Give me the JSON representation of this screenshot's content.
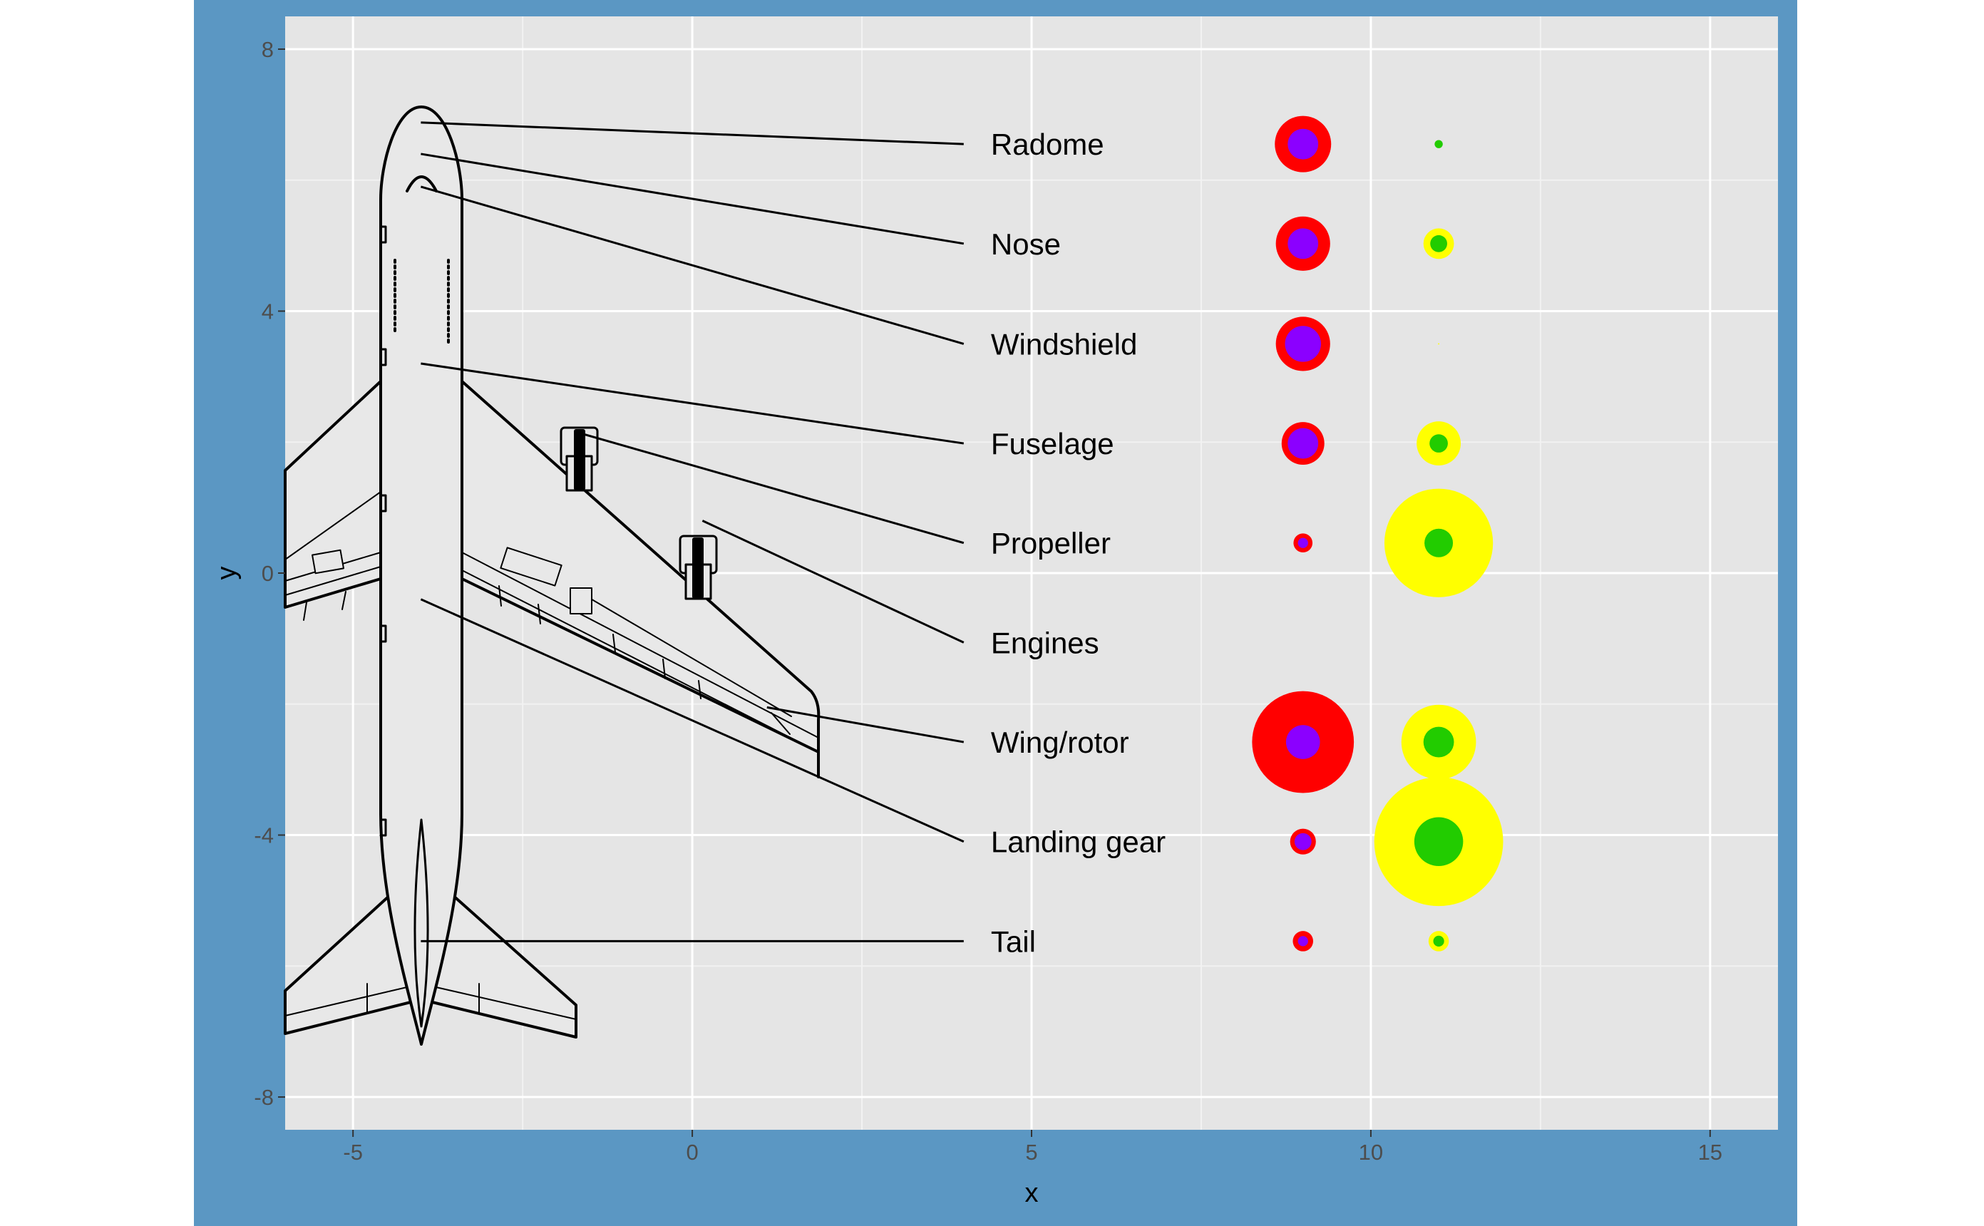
{
  "colors": {
    "page_bg": "#ffffff",
    "panel_outer_bg": "#5b97c3",
    "plot_bg": "#e5e5e5",
    "grid_major": "#ffffff",
    "grid_minor": "#f2f2f2",
    "axis_text": "#4d4d4d",
    "axis_title": "#000000",
    "label_text": "#000000",
    "outer_bubble_left": "#ff0000",
    "inner_bubble_left": "#8b00ff",
    "outer_bubble_right": "#ffff00",
    "inner_bubble_right": "#22cc00",
    "airplane_fill": "#e8e8e8",
    "airplane_stroke": "#000000"
  },
  "chart_data": {
    "type": "scatter",
    "title": "",
    "xlabel": "x",
    "ylabel": "y",
    "xlim": [
      -6.0,
      16.0
    ],
    "ylim": [
      -8.5,
      8.5
    ],
    "x_ticks": [
      -5,
      0,
      5,
      10,
      15
    ],
    "x_tick_labels": [
      "-5",
      "0",
      "5",
      "10",
      "15"
    ],
    "y_ticks": [
      -8,
      -4,
      0,
      4,
      8
    ],
    "y_tick_labels": [
      "-8",
      "-4",
      "0",
      "4",
      "8"
    ],
    "grid": true,
    "legend": "none",
    "labels": [
      {
        "text": "Radome",
        "y": 6.55
      },
      {
        "text": "Nose",
        "y": 5.03
      },
      {
        "text": "Windshield",
        "y": 3.5
      },
      {
        "text": "Fuselage",
        "y": 1.98
      },
      {
        "text": "Propeller",
        "y": 0.46
      },
      {
        "text": "Engines",
        "y": -1.06
      },
      {
        "text": "Wing/rotor",
        "y": -2.58
      },
      {
        "text": "Landing gear",
        "y": -4.1
      },
      {
        "text": "Tail",
        "y": -5.62
      }
    ],
    "label_x": 4.4,
    "leader_end_x": 4.0,
    "leader_lines": [
      {
        "label": "Radome",
        "from": [
          -4.0,
          6.88
        ],
        "to": [
          4.0,
          6.55
        ]
      },
      {
        "label": "Nose",
        "from": [
          -4.0,
          6.4
        ],
        "to": [
          4.0,
          5.03
        ]
      },
      {
        "label": "Windshield",
        "from": [
          -4.0,
          5.9
        ],
        "to": [
          4.0,
          3.5
        ]
      },
      {
        "label": "Fuselage",
        "from": [
          -4.0,
          3.2
        ],
        "to": [
          4.0,
          1.98
        ]
      },
      {
        "label": "Propeller",
        "from": [
          -1.7,
          2.15
        ],
        "to": [
          4.0,
          0.46
        ]
      },
      {
        "label": "Engines",
        "from": [
          0.15,
          0.8
        ],
        "to": [
          4.0,
          -1.06
        ]
      },
      {
        "label": "Wing/rotor",
        "from": [
          1.1,
          -2.05
        ],
        "to": [
          4.0,
          -2.58
        ]
      },
      {
        "label": "Landing gear",
        "from": [
          -4.0,
          -0.4
        ],
        "to": [
          4.0,
          -4.1
        ]
      },
      {
        "label": "Tail",
        "from": [
          -4.0,
          -5.62
        ],
        "to": [
          4.0,
          -5.62
        ]
      }
    ],
    "series": [
      {
        "x": 9.0,
        "color_outer": "#ff0000",
        "color_inner": "#8b00ff",
        "outer_size": [
          0.83,
          0.8,
          0.8,
          0.63,
          0.28,
          0.0,
          1.5,
          0.38,
          0.3
        ],
        "inner_size": [
          0.45,
          0.45,
          0.53,
          0.45,
          0.15,
          0.0,
          0.5,
          0.25,
          0.15
        ]
      },
      {
        "x": 11.0,
        "color_outer": "#ffff00",
        "color_inner": "#22cc00",
        "outer_size": [
          0.08,
          0.45,
          0.02,
          0.65,
          1.6,
          0.0,
          1.1,
          1.9,
          0.3
        ],
        "inner_size": [
          0.12,
          0.25,
          0.0,
          0.27,
          0.42,
          0.0,
          0.45,
          0.72,
          0.16
        ]
      }
    ]
  }
}
